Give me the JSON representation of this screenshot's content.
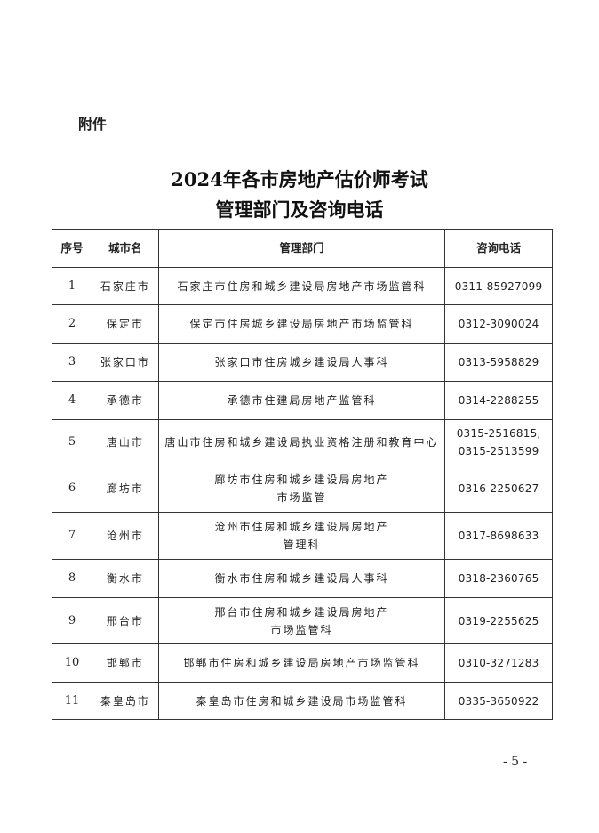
{
  "attachment_label": "附件",
  "title_line1": "2024年各市房地产估价师考试",
  "title_line2": "管理部门及咨询电话",
  "table": {
    "headers": [
      "序号",
      "城市名",
      "管理部门",
      "咨询电话"
    ],
    "rows": [
      {
        "no": "1",
        "city": "石家庄市",
        "dept": "石家庄市住房和城乡建设局房地产市场监管科",
        "phone": "0311-85927099"
      },
      {
        "no": "2",
        "city": "保定市",
        "dept": "保定市住房城乡建设局房地产市场监管科",
        "phone": "0312-3090024"
      },
      {
        "no": "3",
        "city": "张家口市",
        "dept": "张家口市住房城乡建设局人事科",
        "phone": "0313-5958829"
      },
      {
        "no": "4",
        "city": "承德市",
        "dept": "承德市住建局房地产监管科",
        "phone": "0314-2288255"
      },
      {
        "no": "5",
        "city": "唐山市",
        "dept": "唐山市住房和城乡建设局执业资格注册和教育中心",
        "phone": "0315-2516815,",
        "phone2": "0315-2513599"
      },
      {
        "no": "6",
        "city": "廊坊市",
        "dept": "廊坊市住房和城乡建设局房地产",
        "dept2": "市场监管",
        "phone": "0316-2250627"
      },
      {
        "no": "7",
        "city": "沧州市",
        "dept": "沧州市住房和城乡建设局房地产",
        "dept2": "管理科",
        "phone": "0317-8698633"
      },
      {
        "no": "8",
        "city": "衡水市",
        "dept": "衡水市住房和城乡建设局人事科",
        "phone": "0318-2360765"
      },
      {
        "no": "9",
        "city": "邢台市",
        "dept": "邢台市住房和城乡建设局房地产",
        "dept2": "市场监管科",
        "phone": "0319-2255625"
      },
      {
        "no": "10",
        "city": "邯郸市",
        "dept": "邯郸市住房和城乡建设局房地产市场监管科",
        "phone": "0310-3271283"
      },
      {
        "no": "11",
        "city": "秦皇岛市",
        "dept": "秦皇岛市住房和城乡建设局市场监管科",
        "phone": "0335-3650922"
      }
    ]
  },
  "page_number": "- 5 -"
}
